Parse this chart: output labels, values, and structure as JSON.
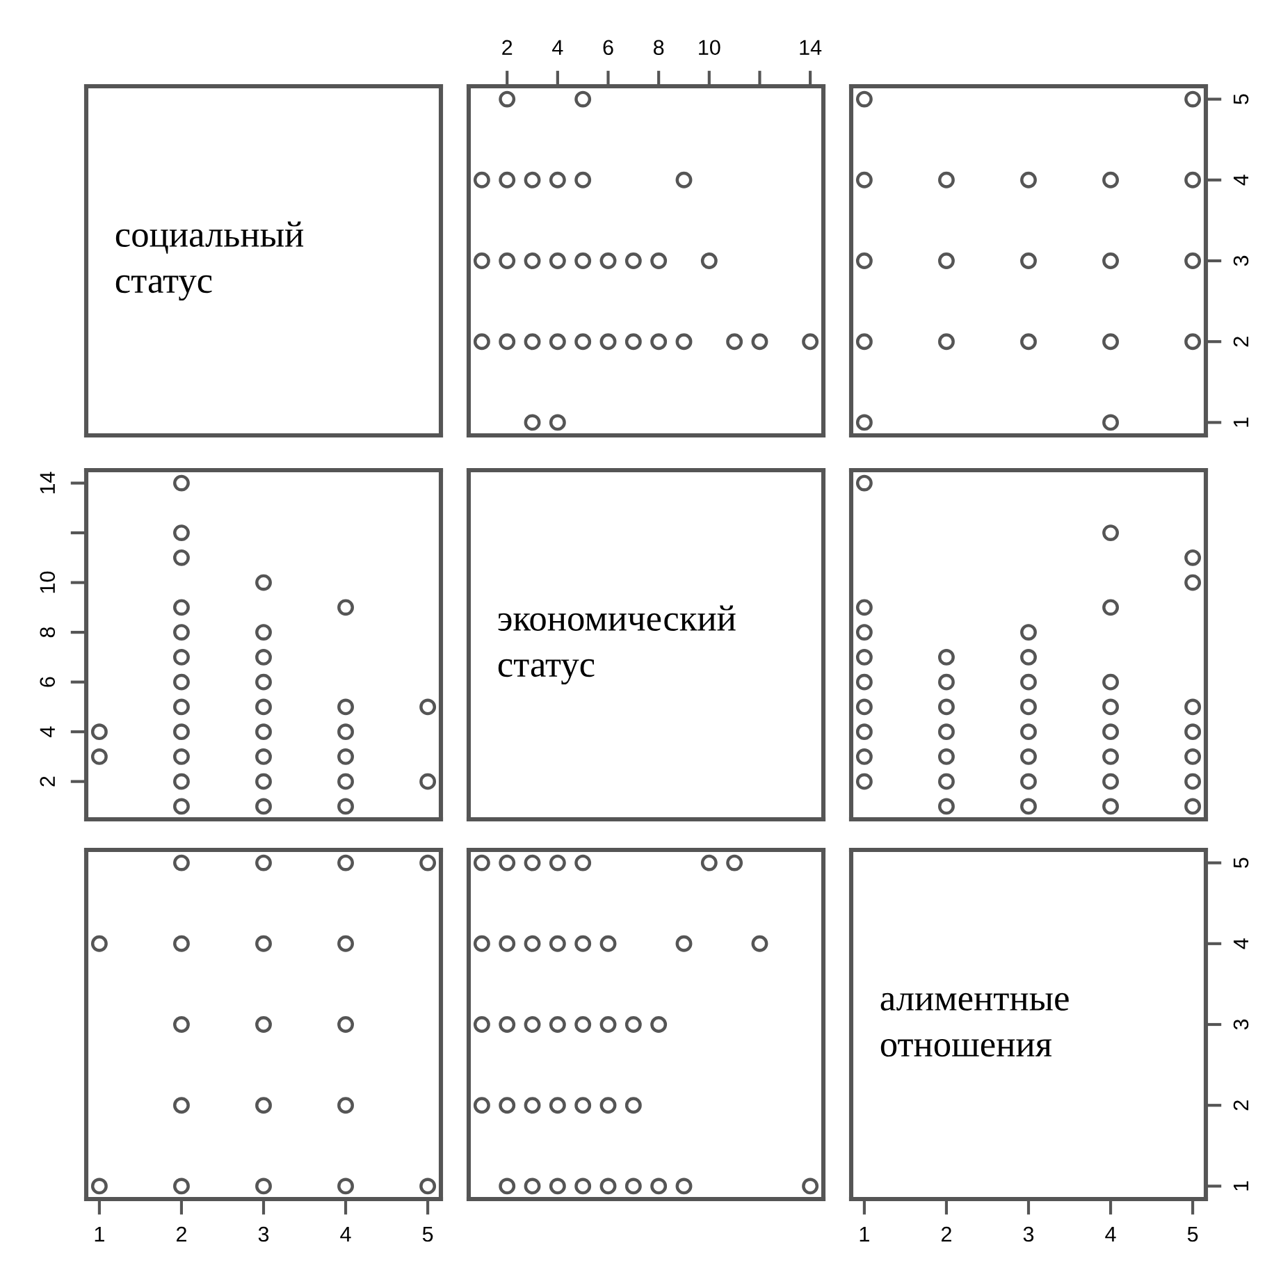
{
  "chart_data": [
    {
      "type": "other",
      "annotations": [
        "социальный\nстатус"
      ]
    },
    {
      "type": "scatter",
      "xlim": [
        0.48,
        14.52
      ],
      "ylim": [
        0.84,
        5.16
      ],
      "xticks": [
        2,
        4,
        6,
        8,
        10,
        {
          "value": 12,
          "label": null
        },
        14
      ],
      "tick_labels": "x",
      "marker": "circle",
      "series": [
        {
          "color": "#555555",
          "x": [
            2,
            5,
            1,
            2,
            3,
            4,
            5,
            9,
            1,
            2,
            3,
            4,
            5,
            6,
            7,
            8,
            10,
            1,
            2,
            3,
            4,
            5,
            6,
            7,
            8,
            9,
            11,
            12,
            14,
            3,
            4
          ],
          "values": [
            5,
            5,
            4,
            4,
            4,
            4,
            4,
            4,
            3,
            3,
            3,
            3,
            3,
            3,
            3,
            3,
            3,
            2,
            2,
            2,
            2,
            2,
            2,
            2,
            2,
            2,
            2,
            2,
            2,
            1,
            1
          ]
        }
      ]
    },
    {
      "type": "scatter",
      "xlim": [
        0.84,
        5.16
      ],
      "ylim": [
        0.84,
        5.16
      ],
      "yticks": [
        1,
        2,
        3,
        4,
        5
      ],
      "tick_labels": "y",
      "marker": "circle",
      "series": [
        {
          "color": "#555555",
          "x": [
            1,
            5,
            1,
            2,
            3,
            4,
            5,
            1,
            2,
            3,
            4,
            5,
            1,
            2,
            3,
            4,
            5,
            1,
            4
          ],
          "values": [
            5,
            5,
            4,
            4,
            4,
            4,
            4,
            3,
            3,
            3,
            3,
            3,
            2,
            2,
            2,
            2,
            2,
            1,
            1
          ]
        }
      ]
    },
    {
      "type": "scatter",
      "xlim": [
        0.84,
        5.16
      ],
      "ylim": [
        0.48,
        14.52
      ],
      "yticks": [
        2,
        4,
        6,
        8,
        10,
        {
          "value": 12,
          "label": null
        },
        14
      ],
      "tick_labels": "y",
      "marker": "circle",
      "series": [
        {
          "color": "#555555",
          "x": [
            1,
            1,
            2,
            2,
            2,
            2,
            2,
            2,
            2,
            2,
            2,
            2,
            2,
            2,
            3,
            3,
            3,
            3,
            3,
            3,
            3,
            3,
            3,
            4,
            4,
            4,
            4,
            4,
            4,
            5,
            5
          ],
          "values": [
            3,
            4,
            1,
            2,
            3,
            4,
            5,
            6,
            7,
            8,
            9,
            11,
            12,
            14,
            1,
            2,
            3,
            4,
            5,
            6,
            7,
            8,
            10,
            1,
            2,
            3,
            4,
            5,
            9,
            2,
            5
          ]
        }
      ]
    },
    {
      "type": "other",
      "annotations": [
        "экономический\nстатус"
      ]
    },
    {
      "type": "scatter",
      "xlim": [
        0.84,
        5.16
      ],
      "ylim": [
        0.48,
        14.52
      ],
      "tick_labels": false,
      "marker": "circle",
      "series": [
        {
          "color": "#555555",
          "x": [
            1,
            1,
            1,
            1,
            1,
            1,
            1,
            1,
            1,
            2,
            2,
            2,
            2,
            2,
            2,
            2,
            3,
            3,
            3,
            3,
            3,
            3,
            3,
            3,
            4,
            4,
            4,
            4,
            4,
            4,
            4,
            4,
            5,
            5,
            5,
            5,
            5,
            5,
            5
          ],
          "values": [
            2,
            3,
            4,
            5,
            6,
            7,
            8,
            9,
            14,
            1,
            2,
            3,
            4,
            5,
            6,
            7,
            1,
            2,
            3,
            4,
            5,
            6,
            7,
            8,
            1,
            2,
            3,
            4,
            5,
            6,
            9,
            12,
            1,
            2,
            3,
            4,
            5,
            10,
            11
          ]
        }
      ]
    },
    {
      "type": "scatter",
      "xlim": [
        0.84,
        5.16
      ],
      "xticks": [
        1,
        2,
        3,
        4,
        5
      ],
      "ylim": [
        0.84,
        5.16
      ],
      "tick_labels": "x",
      "marker": "circle",
      "series": [
        {
          "color": "#555555",
          "x": [
            2,
            3,
            4,
            5,
            1,
            2,
            3,
            4,
            2,
            3,
            4,
            2,
            3,
            4,
            1,
            2,
            3,
            4,
            5
          ],
          "values": [
            5,
            5,
            5,
            5,
            4,
            4,
            4,
            4,
            3,
            3,
            3,
            2,
            2,
            2,
            1,
            1,
            1,
            1,
            1
          ]
        }
      ]
    },
    {
      "type": "scatter",
      "xlim": [
        0.48,
        14.52
      ],
      "ylim": [
        0.84,
        5.16
      ],
      "tick_labels": false,
      "marker": "circle",
      "series": [
        {
          "color": "#555555",
          "x": [
            1,
            2,
            3,
            4,
            5,
            10,
            11,
            1,
            2,
            3,
            4,
            5,
            6,
            9,
            12,
            1,
            2,
            3,
            4,
            5,
            6,
            7,
            8,
            1,
            2,
            3,
            4,
            5,
            6,
            7,
            2,
            3,
            4,
            5,
            6,
            7,
            8,
            9,
            14
          ],
          "values": [
            5,
            5,
            5,
            5,
            5,
            5,
            5,
            4,
            4,
            4,
            4,
            4,
            4,
            4,
            4,
            3,
            3,
            3,
            3,
            3,
            3,
            3,
            3,
            2,
            2,
            2,
            2,
            2,
            2,
            2,
            1,
            1,
            1,
            1,
            1,
            1,
            1,
            1,
            1
          ]
        }
      ]
    },
    {
      "type": "scatter",
      "annotations": [
        "алиментные\nотношения"
      ],
      "xlim": [
        0.84,
        5.16
      ],
      "xticks": [
        1,
        2,
        3,
        4,
        5
      ],
      "ylim": [
        0.84,
        5.16
      ],
      "yticks": [
        1,
        2,
        3,
        4,
        5
      ]
    }
  ]
}
